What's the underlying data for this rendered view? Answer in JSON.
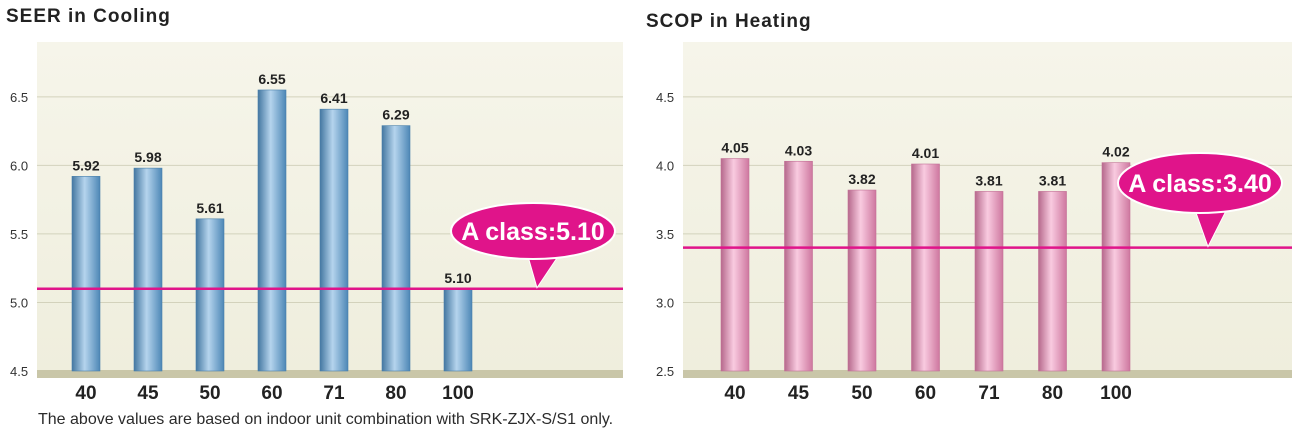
{
  "chart_data": [
    {
      "type": "bar",
      "title": "SEER in Cooling",
      "categories": [
        "40",
        "45",
        "50",
        "60",
        "71",
        "80",
        "100"
      ],
      "values": [
        5.92,
        5.98,
        5.61,
        6.55,
        6.41,
        6.29,
        5.1
      ],
      "value_labels": [
        "5.92",
        "5.98",
        "5.61",
        "6.55",
        "6.41",
        "6.29",
        "5.10"
      ],
      "yticks": [
        "4.5",
        "5.0",
        "5.5",
        "6.0",
        "6.5"
      ],
      "ylim": [
        4.5,
        6.9
      ],
      "grid": true,
      "reference_line": {
        "value": 5.1,
        "label": "A class:5.10"
      },
      "bar_color": "#5a9fd6",
      "line_color": "#e0148a",
      "background_color": "#efeedd"
    },
    {
      "type": "bar",
      "title": "SCOP in Heating",
      "categories": [
        "40",
        "45",
        "50",
        "60",
        "71",
        "80",
        "100"
      ],
      "values": [
        4.05,
        4.03,
        3.82,
        4.01,
        3.81,
        3.81,
        4.02
      ],
      "value_labels": [
        "4.05",
        "4.03",
        "3.82",
        "4.01",
        "3.81",
        "3.81",
        "4.02"
      ],
      "yticks": [
        "2.5",
        "3.0",
        "3.5",
        "4.0",
        "4.5"
      ],
      "ylim": [
        2.5,
        4.9
      ],
      "grid": true,
      "reference_line": {
        "value": 3.4,
        "label": "A class:3.40"
      },
      "bar_color": "#f28cbb",
      "line_color": "#e0148a",
      "background_color": "#efeedd"
    }
  ],
  "footnote": "The above values are based on indoor unit combination with SRK-ZJX-S/S1 only."
}
